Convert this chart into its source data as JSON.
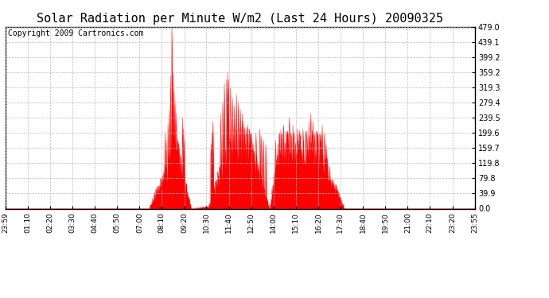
{
  "title": "Solar Radiation per Minute W/m2 (Last 24 Hours) 20090325",
  "copyright": "Copyright 2009 Cartronics.com",
  "y_ticks": [
    0.0,
    39.9,
    79.8,
    119.8,
    159.7,
    199.6,
    239.5,
    279.4,
    319.3,
    359.2,
    399.2,
    439.1,
    479.0
  ],
  "ymax": 479.0,
  "ymin": 0.0,
  "fill_color": "#FF0000",
  "line_color": "#FF0000",
  "bg_color": "#FFFFFF",
  "grid_color": "#BBBBBB",
  "dashed_line_color": "#FF0000",
  "x_labels": [
    "23:59",
    "01:10",
    "02:20",
    "03:30",
    "04:40",
    "05:50",
    "07:00",
    "08:10",
    "09:20",
    "10:30",
    "11:40",
    "12:50",
    "14:00",
    "15:10",
    "16:20",
    "17:30",
    "18:40",
    "19:50",
    "21:00",
    "22:10",
    "23:20",
    "23:55"
  ],
  "title_fontsize": 11,
  "copyright_fontsize": 7,
  "tick_fontsize": 6.5,
  "ytick_fontsize": 7
}
